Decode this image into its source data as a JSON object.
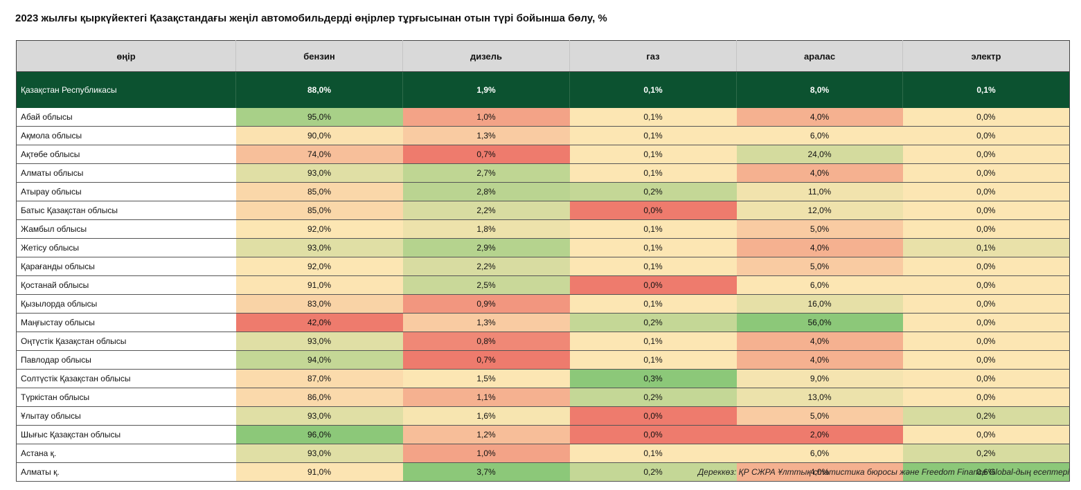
{
  "title": "2023 жылғы қыркүйектегі Қазақстандағы жеңіл автомобильдерді өңірлер тұрғысынан отын түрі бойынша бөлу, %",
  "columns": [
    "өңір",
    "бензин",
    "дизель",
    "газ",
    "аралас",
    "электр"
  ],
  "total": {
    "region": "Қазақстан Республикасы",
    "values": [
      "88,0%",
      "1,9%",
      "0,1%",
      "8,0%",
      "0,1%"
    ]
  },
  "rows": [
    {
      "region": "Абай облысы",
      "values": [
        "95,0%",
        "1,0%",
        "0,1%",
        "4,0%",
        "0,0%"
      ]
    },
    {
      "region": "Ақмола облысы",
      "values": [
        "90,0%",
        "1,3%",
        "0,1%",
        "6,0%",
        "0,0%"
      ]
    },
    {
      "region": "Ақтөбе облысы",
      "values": [
        "74,0%",
        "0,7%",
        "0,1%",
        "24,0%",
        "0,0%"
      ]
    },
    {
      "region": "Алматы облысы",
      "values": [
        "93,0%",
        "2,7%",
        "0,1%",
        "4,0%",
        "0,0%"
      ]
    },
    {
      "region": "Атырау облысы",
      "values": [
        "85,0%",
        "2,8%",
        "0,2%",
        "11,0%",
        "0,0%"
      ]
    },
    {
      "region": "Батыс Қазақстан облысы",
      "values": [
        "85,0%",
        "2,2%",
        "0,0%",
        "12,0%",
        "0,0%"
      ]
    },
    {
      "region": "Жамбыл облысы",
      "values": [
        "92,0%",
        "1,8%",
        "0,1%",
        "5,0%",
        "0,0%"
      ]
    },
    {
      "region": "Жетісу облысы",
      "values": [
        "93,0%",
        "2,9%",
        "0,1%",
        "4,0%",
        "0,1%"
      ]
    },
    {
      "region": "Қарағанды облысы",
      "values": [
        "92,0%",
        "2,2%",
        "0,1%",
        "5,0%",
        "0,0%"
      ]
    },
    {
      "region": "Қостанай облысы",
      "values": [
        "91,0%",
        "2,5%",
        "0,0%",
        "6,0%",
        "0,0%"
      ]
    },
    {
      "region": "Қызылорда облысы",
      "values": [
        "83,0%",
        "0,9%",
        "0,1%",
        "16,0%",
        "0,0%"
      ]
    },
    {
      "region": "Маңғыстау облысы",
      "values": [
        "42,0%",
        "1,3%",
        "0,2%",
        "56,0%",
        "0,0%"
      ]
    },
    {
      "region": "Оңтүстік Қазақстан облысы",
      "values": [
        "93,0%",
        "0,8%",
        "0,1%",
        "4,0%",
        "0,0%"
      ]
    },
    {
      "region": "Павлодар облысы",
      "values": [
        "94,0%",
        "0,7%",
        "0,1%",
        "4,0%",
        "0,0%"
      ]
    },
    {
      "region": "Солтүстік Қазақстан облысы",
      "values": [
        "87,0%",
        "1,5%",
        "0,3%",
        "9,0%",
        "0,0%"
      ]
    },
    {
      "region": "Түркістан облысы",
      "values": [
        "86,0%",
        "1,1%",
        "0,2%",
        "13,0%",
        "0,0%"
      ]
    },
    {
      "region": "Ұлытау облысы",
      "values": [
        "93,0%",
        "1,6%",
        "0,0%",
        "5,0%",
        "0,2%"
      ]
    },
    {
      "region": "Шығыс Қазақстан облысы",
      "values": [
        "96,0%",
        "1,2%",
        "0,0%",
        "2,0%",
        "0,0%"
      ]
    },
    {
      "region": "Астана қ.",
      "values": [
        "93,0%",
        "1,0%",
        "0,1%",
        "6,0%",
        "0,2%"
      ]
    },
    {
      "region": "Алматы қ.",
      "values": [
        "91,0%",
        "3,7%",
        "0,2%",
        "4,0%",
        "0,6%"
      ]
    }
  ],
  "colors": {
    "header_bg": "#d9d9d9",
    "total_bg": "#0c5230",
    "heat_low": "#ee7b6d",
    "heat_mid": "#fce6b3",
    "heat_high": "#8cc879"
  },
  "source": "Дереккөз: ҚР СЖРА Ұлттық статистика бюросы және Freedom Finance Global-дың есептері"
}
